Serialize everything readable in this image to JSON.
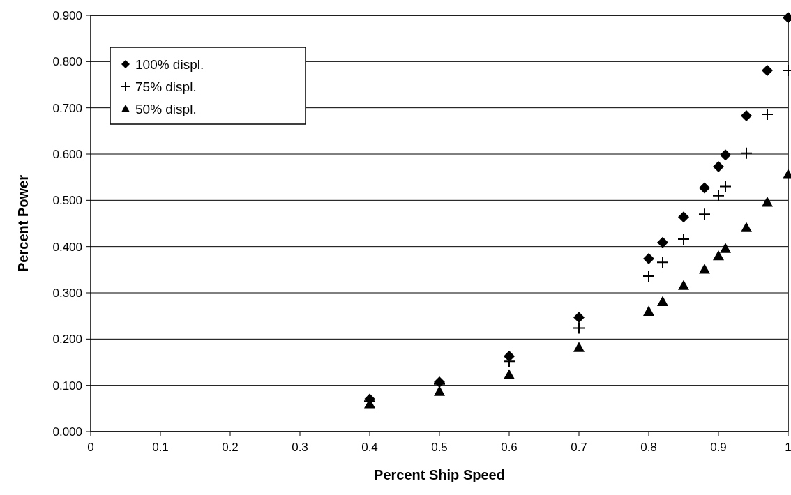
{
  "chart_data": {
    "type": "scatter",
    "xlabel": "Percent Ship Speed",
    "ylabel": "Percent Power",
    "xlim": [
      0,
      1
    ],
    "xticks": [
      0,
      0.1,
      0.2,
      0.3,
      0.4,
      0.5,
      0.6,
      0.7,
      0.8,
      0.9,
      1
    ],
    "ylim": [
      0,
      0.9
    ],
    "yticks": [
      {
        "value": 0,
        "label": "0.000"
      },
      {
        "value": 0.1,
        "label": "0.100"
      },
      {
        "value": 0.2,
        "label": "0.200"
      },
      {
        "value": 0.3,
        "label": "0.300"
      },
      {
        "value": 0.4,
        "label": "0.400"
      },
      {
        "value": 0.5,
        "label": "0.500"
      },
      {
        "value": 0.6,
        "label": "0.600"
      },
      {
        "value": 0.7,
        "label": "0.700"
      },
      {
        "value": 0.8,
        "label": "0.800"
      },
      {
        "value": 0.9,
        "label": "0.900"
      }
    ],
    "grid": "y",
    "legend": "top left",
    "x": [
      0.4,
      0.5,
      0.6,
      0.7,
      0.8,
      0.82,
      0.85,
      0.88,
      0.9,
      0.91,
      0.94,
      0.97,
      1.0
    ],
    "series": [
      {
        "name": "100% displ.",
        "color": "#000000",
        "marker": "diamond",
        "values": [
          0.07,
          0.107,
          0.163,
          0.247,
          0.374,
          0.409,
          0.464,
          0.527,
          0.573,
          0.598,
          0.683,
          0.781,
          0.895
        ]
      },
      {
        "name": "75% displ.",
        "color": "#000000",
        "marker": "cross",
        "values": [
          0.066,
          0.103,
          0.152,
          0.224,
          0.336,
          0.366,
          0.416,
          0.47,
          0.51,
          0.53,
          0.602,
          0.686,
          0.781
        ]
      },
      {
        "name": "50% displ.",
        "color": "#000000",
        "marker": "triangle",
        "values": [
          0.06,
          0.087,
          0.123,
          0.182,
          0.26,
          0.281,
          0.316,
          0.351,
          0.38,
          0.396,
          0.441,
          0.496,
          0.556
        ]
      }
    ]
  }
}
